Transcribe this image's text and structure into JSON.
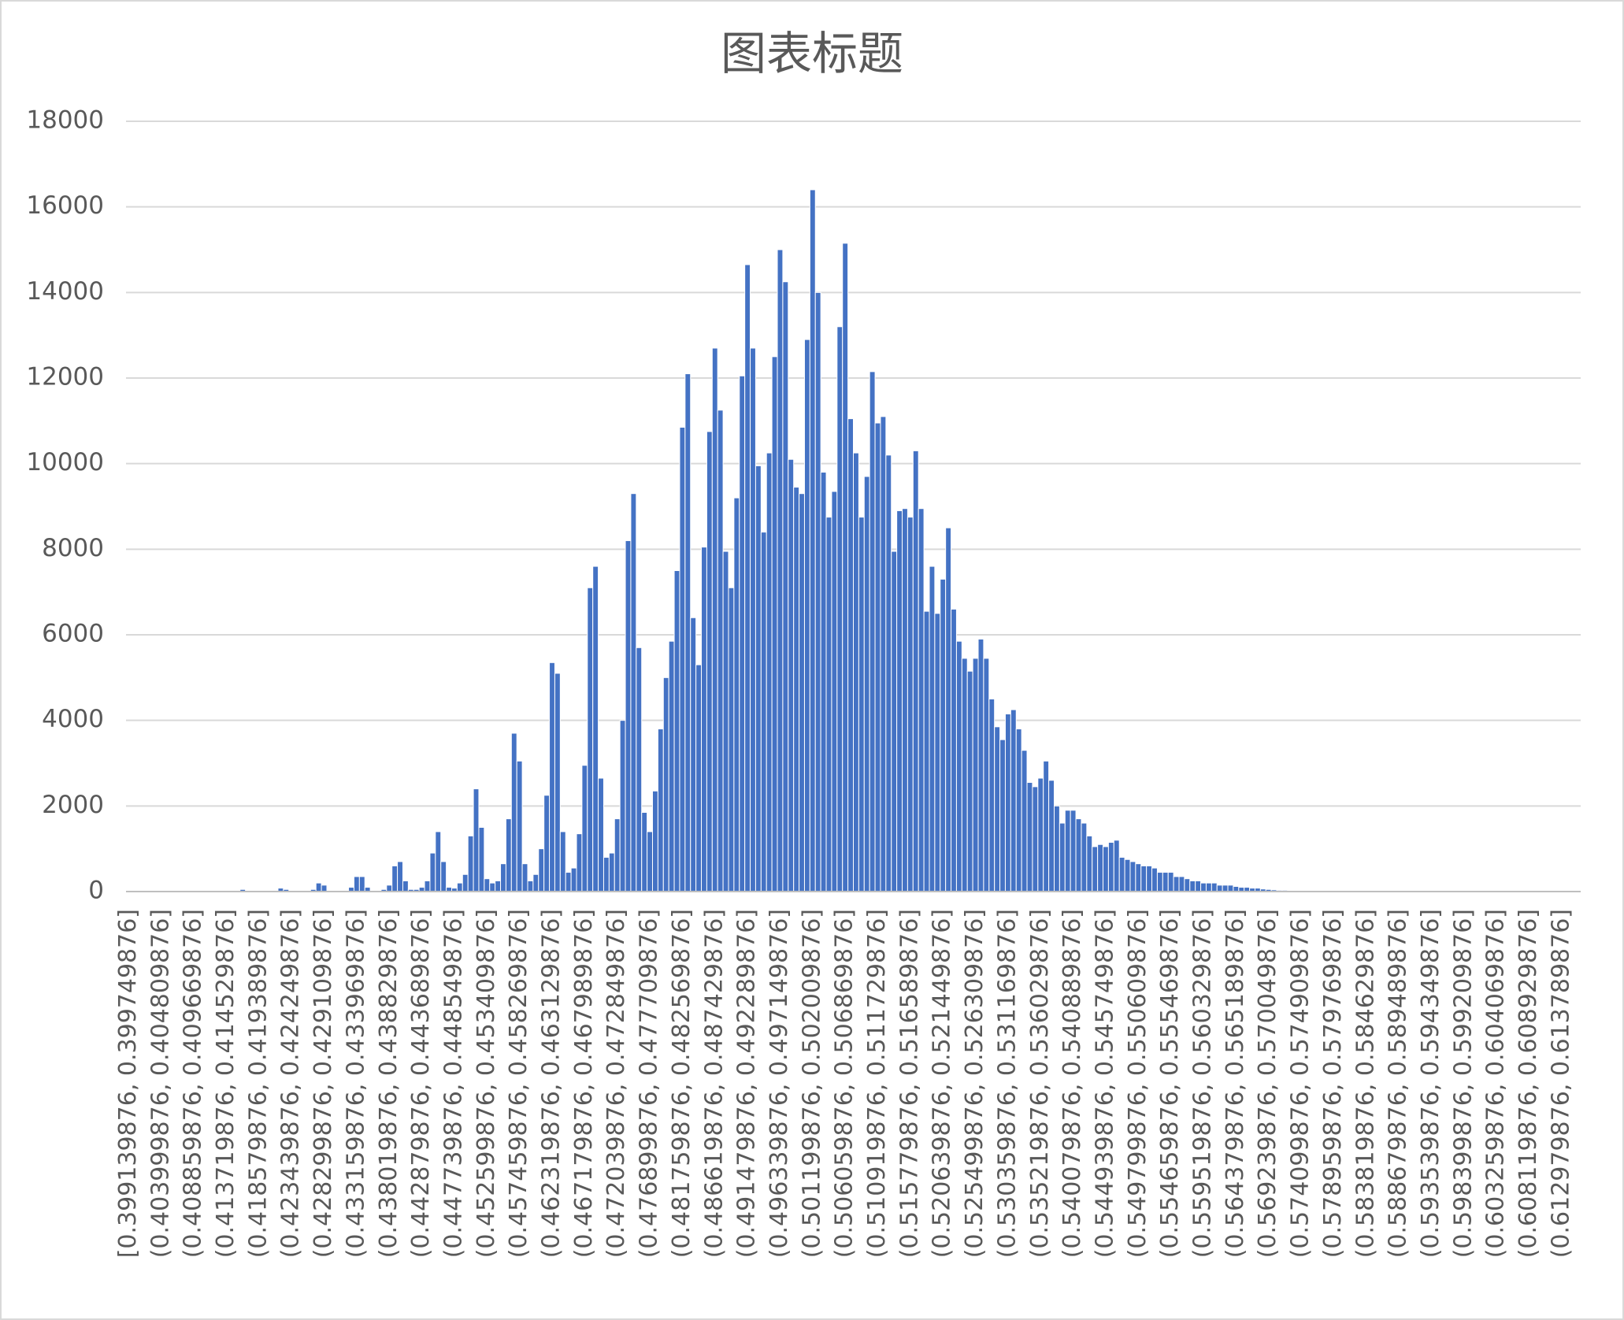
{
  "chart_data": {
    "type": "bar",
    "title": "图表标题",
    "categories": [
      "[0.399139876, 0.399749876]",
      null,
      null,
      null,
      null,
      null,
      "(0.403999876, 0.404809876]",
      null,
      null,
      null,
      null,
      null,
      "(0.408859876, 0.409669876]",
      null,
      null,
      null,
      null,
      null,
      "(0.413719876, 0.414529876]",
      null,
      null,
      null,
      null,
      null,
      "(0.418579876, 0.419389876]",
      null,
      null,
      null,
      null,
      null,
      "(0.423439876, 0.424249876]",
      null,
      null,
      null,
      null,
      null,
      "(0.428299876, 0.429109876]",
      null,
      null,
      null,
      null,
      null,
      "(0.433159876, 0.433969876]",
      null,
      null,
      null,
      null,
      null,
      "(0.438019876, 0.438829876]",
      null,
      null,
      null,
      null,
      null,
      "(0.442879876, 0.443689876]",
      null,
      null,
      null,
      null,
      null,
      "(0.447739876, 0.448549876]",
      null,
      null,
      null,
      null,
      null,
      "(0.452599876, 0.453409876]",
      null,
      null,
      null,
      null,
      null,
      "(0.457459876, 0.458269876]",
      null,
      null,
      null,
      null,
      null,
      "(0.462319876, 0.463129876]",
      null,
      null,
      null,
      null,
      null,
      "(0.467179876, 0.467989876]",
      null,
      null,
      null,
      null,
      null,
      "(0.472039876, 0.472849876]",
      null,
      null,
      null,
      null,
      null,
      "(0.476899876, 0.477709876]",
      null,
      null,
      null,
      null,
      null,
      "(0.481759876, 0.482569876]",
      null,
      null,
      null,
      null,
      null,
      "(0.486619876, 0.487429876]",
      null,
      null,
      null,
      null,
      null,
      "(0.491479876, 0.492289876]",
      null,
      null,
      null,
      null,
      null,
      "(0.496339876, 0.497149876]",
      null,
      null,
      null,
      null,
      null,
      "(0.501199876, 0.502009876]",
      null,
      null,
      null,
      null,
      null,
      "(0.506059876, 0.506869876]",
      null,
      null,
      null,
      null,
      null,
      "(0.510919876, 0.511729876]",
      null,
      null,
      null,
      null,
      null,
      "(0.515779876, 0.516589876]",
      null,
      null,
      null,
      null,
      null,
      "(0.520639876, 0.521449876]",
      null,
      null,
      null,
      null,
      null,
      "(0.525499876, 0.526309876]",
      null,
      null,
      null,
      null,
      null,
      "(0.530359876, 0.531169876]",
      null,
      null,
      null,
      null,
      null,
      "(0.535219876, 0.536029876]",
      null,
      null,
      null,
      null,
      null,
      "(0.540079876, 0.540889876]",
      null,
      null,
      null,
      null,
      null,
      "(0.544939876, 0.545749876]",
      null,
      null,
      null,
      null,
      null,
      "(0.549799876, 0.550609876]",
      null,
      null,
      null,
      null,
      null,
      "(0.554659876, 0.555469876]",
      null,
      null,
      null,
      null,
      null,
      "(0.559519876, 0.560329876]",
      null,
      null,
      null,
      null,
      null,
      "(0.564379876, 0.565189876]",
      null,
      null,
      null,
      null,
      null,
      "(0.569239876, 0.570049876]",
      null,
      null,
      null,
      null,
      null,
      "(0.574099876, 0.574909876]",
      null,
      null,
      null,
      null,
      null,
      "(0.578959876, 0.579769876]",
      null,
      null,
      null,
      null,
      null,
      "(0.583819876, 0.584629876]",
      null,
      null,
      null,
      null,
      null,
      "(0.588679876, 0.589489876]",
      null,
      null,
      null,
      null,
      null,
      "(0.593539876, 0.594349876]",
      null,
      null,
      null,
      null,
      null,
      "(0.598399876, 0.599209876]",
      null,
      null,
      null,
      null,
      null,
      "(0.603259876, 0.604069876]",
      null,
      null,
      null,
      null,
      null,
      "(0.608119876, 0.608929876]",
      null,
      null,
      null,
      null,
      null,
      "(0.612979876, 0.613789876]",
      null,
      null,
      null
    ],
    "values": [
      0,
      0,
      0,
      0,
      0,
      0,
      0,
      0,
      0,
      0,
      0,
      0,
      0,
      0,
      0,
      0,
      0,
      0,
      0,
      0,
      0,
      50,
      0,
      0,
      0,
      0,
      0,
      0,
      80,
      50,
      0,
      0,
      0,
      0,
      50,
      200,
      150,
      0,
      0,
      0,
      0,
      100,
      350,
      350,
      100,
      0,
      0,
      50,
      150,
      600,
      700,
      250,
      50,
      50,
      100,
      250,
      900,
      1400,
      700,
      100,
      80,
      200,
      400,
      1300,
      2400,
      1500,
      300,
      200,
      250,
      650,
      1700,
      3700,
      3050,
      650,
      250,
      400,
      1000,
      2250,
      5350,
      5100,
      1400,
      450,
      550,
      1350,
      2950,
      7100,
      7600,
      2650,
      800,
      900,
      1700,
      4000,
      8200,
      9300,
      5700,
      1850,
      1400,
      2350,
      3800,
      5000,
      5850,
      7500,
      10850,
      12100,
      6400,
      5300,
      8050,
      10750,
      12700,
      11250,
      7950,
      7100,
      9200,
      12050,
      14650,
      12700,
      9950,
      8400,
      10250,
      12500,
      15000,
      14250,
      10100,
      9450,
      9300,
      12900,
      16400,
      14000,
      9800,
      8750,
      9350,
      13200,
      15150,
      11050,
      10250,
      8750,
      9700,
      12150,
      10950,
      11100,
      10200,
      7950,
      8900,
      8950,
      8750,
      10300,
      8950,
      6550,
      7600,
      6500,
      7300,
      8500,
      6600,
      5850,
      5450,
      5150,
      5450,
      5900,
      5450,
      4500,
      3850,
      3550,
      4150,
      4250,
      3800,
      3300,
      2550,
      2450,
      2650,
      3050,
      2600,
      2000,
      1600,
      1900,
      1900,
      1700,
      1600,
      1300,
      1050,
      1100,
      1050,
      1150,
      1200,
      800,
      750,
      700,
      650,
      600,
      600,
      550,
      450,
      450,
      450,
      350,
      350,
      300,
      250,
      250,
      200,
      200,
      200,
      150,
      150,
      150,
      120,
      100,
      100,
      80,
      80,
      60,
      50,
      40,
      30,
      30,
      20,
      20,
      0,
      0,
      0,
      0,
      0,
      0,
      0,
      0,
      0,
      0,
      0,
      0,
      0,
      0,
      0,
      0,
      0,
      0,
      0,
      0,
      0,
      0,
      0,
      0,
      0,
      0,
      0,
      0,
      0,
      0,
      0,
      0,
      0,
      0,
      0,
      0,
      0,
      0,
      0,
      0,
      0,
      0,
      0,
      0,
      0,
      0,
      0,
      0,
      0,
      0,
      0,
      0
    ],
    "color": "#4472c4",
    "ylim": [
      0,
      18000
    ],
    "yticks": [
      0,
      2000,
      4000,
      6000,
      8000,
      10000,
      12000,
      14000,
      16000,
      18000
    ],
    "grid": true
  }
}
